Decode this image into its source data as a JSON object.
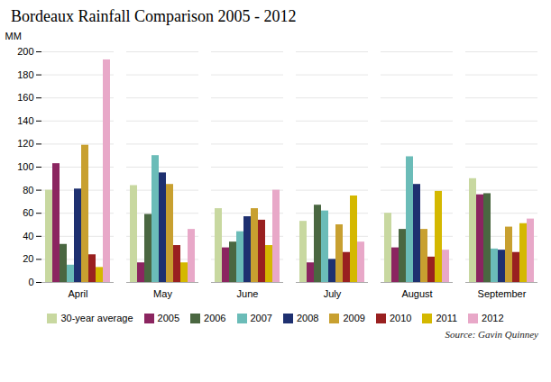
{
  "chart_data": {
    "type": "bar",
    "title": "Bordeaux Rainfall Comparison 2005 - 2012",
    "ylabel": "MM",
    "annotations": [
      "Source: Gavin Quinney"
    ],
    "categories": [
      "April",
      "May",
      "June",
      "July",
      "August",
      "September"
    ],
    "series": [
      {
        "name": "30-year average",
        "color": "#c8d8a0",
        "values": [
          80,
          84,
          64,
          53,
          60,
          90
        ]
      },
      {
        "name": "2005",
        "color": "#8b2560",
        "values": [
          103,
          17,
          30,
          17,
          30,
          76
        ]
      },
      {
        "name": "2006",
        "color": "#4a6741",
        "values": [
          33,
          59,
          35,
          67,
          46,
          77
        ]
      },
      {
        "name": "2007",
        "color": "#6bbcb8",
        "values": [
          15,
          110,
          44,
          62,
          109,
          29
        ]
      },
      {
        "name": "2008",
        "color": "#1e3070",
        "values": [
          81,
          95,
          57,
          20,
          85,
          28
        ]
      },
      {
        "name": "2009",
        "color": "#c8a030",
        "values": [
          119,
          85,
          64,
          50,
          46,
          48
        ]
      },
      {
        "name": "2010",
        "color": "#992020",
        "values": [
          24,
          32,
          54,
          26,
          22,
          26
        ]
      },
      {
        "name": "2011",
        "color": "#d4b800",
        "values": [
          13,
          17,
          32,
          75,
          79,
          51
        ]
      },
      {
        "name": "2012",
        "color": "#e8a8c8",
        "values": [
          193,
          46,
          80,
          35,
          28,
          55
        ]
      }
    ],
    "ylim": [
      0,
      200
    ],
    "yticks": [
      0,
      20,
      40,
      60,
      80,
      100,
      120,
      140,
      160,
      180,
      200
    ],
    "grid": true,
    "legend": "bottom"
  }
}
